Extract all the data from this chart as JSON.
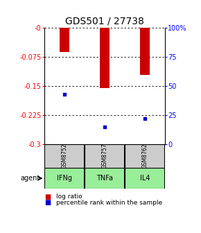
{
  "title": "GDS501 / 27738",
  "samples": [
    "GSM8752",
    "GSM8757",
    "GSM8762"
  ],
  "agents": [
    "IFNg",
    "TNFa",
    "IL4"
  ],
  "log_ratios": [
    -0.062,
    -0.155,
    -0.12
  ],
  "percentiles": [
    43,
    15,
    22
  ],
  "ylim": [
    -0.3,
    0.0
  ],
  "yticks": [
    0.0,
    -0.075,
    -0.15,
    -0.225,
    -0.3
  ],
  "ytick_labels": [
    "-0",
    "-0.075",
    "-0.15",
    "-0.225",
    "-0.3"
  ],
  "right_ytick_vals": [
    0.0,
    -0.075,
    -0.15,
    -0.225,
    -0.3
  ],
  "right_ytick_labels": [
    "100%",
    "75",
    "50",
    "25",
    "0"
  ],
  "bar_color": "#cc0000",
  "percentile_color": "#0000cc",
  "sample_box_color": "#cccccc",
  "agent_box_color": "#99ee99",
  "title_fontsize": 10,
  "tick_fontsize": 7,
  "legend_fontsize": 6.5,
  "bar_width": 0.25
}
